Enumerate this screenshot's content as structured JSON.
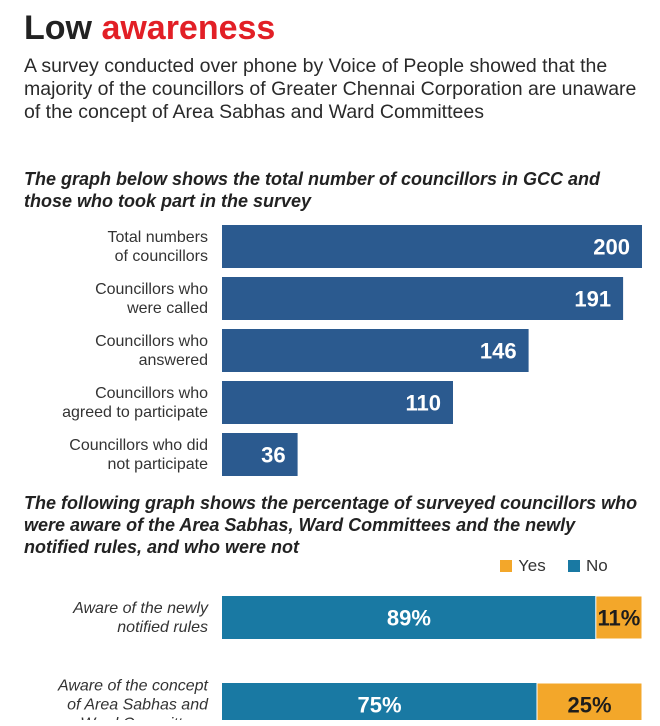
{
  "headline": {
    "part1": "Low ",
    "part2": "awareness"
  },
  "intro": "A survey conducted over phone by Voice of People showed that the majority of the councillors of Greater Chennai Corporation are unaware of the concept of Area Sabhas and Ward Committees",
  "colors": {
    "headline_accent": "#e21f26",
    "bar_primary": "#2b5a8f",
    "no": "#1979a3",
    "yes": "#f3a72a"
  },
  "chart_data": [
    {
      "type": "bar",
      "orientation": "horizontal",
      "title": "The graph below shows the total number of councillors in GCC and those who took part in the survey",
      "categories": [
        [
          "Total numbers",
          "of councillors"
        ],
        [
          "Councillors who",
          "were called"
        ],
        [
          "Councillors who",
          "answered"
        ],
        [
          "Councillors who",
          "agreed to participate"
        ],
        [
          "Councillors who did",
          "not participate"
        ]
      ],
      "values": [
        200,
        191,
        146,
        110,
        36
      ],
      "xlim": [
        0,
        200
      ],
      "grid": false
    },
    {
      "type": "bar",
      "orientation": "horizontal",
      "stacked": true,
      "normalized": true,
      "title": "The following graph shows the percentage of surveyed councillors who were aware of the Area Sabhas, Ward Committees and the newly notified rules, and who were not",
      "categories": [
        [
          "Aware of the newly",
          "notified rules"
        ],
        [
          "Aware of the concept",
          "of Area Sabhas and",
          "Ward Committees"
        ]
      ],
      "series": [
        {
          "name": "No",
          "values": [
            89,
            75
          ],
          "labels": [
            "89%",
            "75%"
          ]
        },
        {
          "name": "Yes",
          "values": [
            11,
            25
          ],
          "labels": [
            "11%",
            "25%"
          ]
        }
      ],
      "legend": {
        "items": [
          "Yes",
          "No"
        ],
        "position": "top-right"
      },
      "xlim": [
        0,
        100
      ],
      "unit": "%"
    }
  ]
}
